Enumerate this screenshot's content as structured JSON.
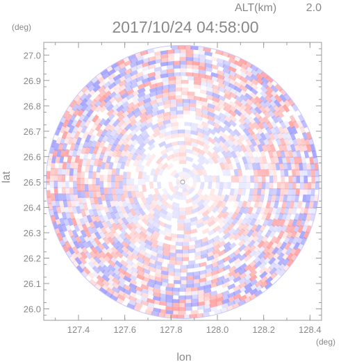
{
  "chart_data": {
    "type": "heatmap",
    "altitude_label": "ALT(km)",
    "altitude_value": "2.0",
    "title": "2017/10/24 04:58:00",
    "xlabel": "lon",
    "ylabel": "lat",
    "x_unit": "(deg)",
    "y_unit": "(deg)",
    "xlim": [
      127.25,
      128.45
    ],
    "ylim": [
      25.955,
      27.05
    ],
    "x_ticks": [
      "127.4",
      "127.6",
      "127.8",
      "128.0",
      "128.2",
      "128.4"
    ],
    "x_tick_values": [
      127.4,
      127.6,
      127.8,
      128.0,
      128.2,
      128.4
    ],
    "y_ticks": [
      "26.0",
      "26.1",
      "26.2",
      "26.3",
      "26.4",
      "26.5",
      "26.6",
      "26.7",
      "26.8",
      "26.9",
      "27.0"
    ],
    "y_tick_values": [
      26.0,
      26.1,
      26.2,
      26.3,
      26.4,
      26.5,
      26.6,
      26.7,
      26.8,
      26.9,
      27.0
    ],
    "center": {
      "lon": 127.85,
      "lat": 26.5
    },
    "range_radius_deg": 0.59,
    "colors": {
      "positive": "#ff9a9a",
      "negative": "#9a9aff",
      "neutral": "#ffffff",
      "frame": "#999999",
      "text": "#888888"
    }
  }
}
